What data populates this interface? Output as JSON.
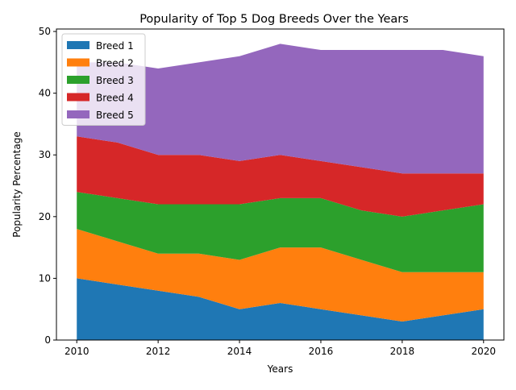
{
  "chart_data": {
    "type": "area",
    "stacked": true,
    "title": "Popularity of Top 5 Dog Breeds Over the Years",
    "xlabel": "Years",
    "ylabel": "Popularity Percentage",
    "xlim": [
      2009.5,
      2020.5
    ],
    "ylim": [
      0,
      50.4
    ],
    "xticks": [
      2010,
      2012,
      2014,
      2016,
      2018,
      2020
    ],
    "yticks": [
      0,
      10,
      20,
      30,
      40,
      50
    ],
    "grid": false,
    "legend_position": "top-left",
    "x": [
      2010,
      2011,
      2012,
      2013,
      2014,
      2015,
      2016,
      2017,
      2018,
      2019,
      2020
    ],
    "series": [
      {
        "name": "Breed 1",
        "color": "#1f77b4",
        "values": [
          10,
          9,
          8,
          7,
          5,
          6,
          5,
          4,
          3,
          4,
          5
        ]
      },
      {
        "name": "Breed 2",
        "color": "#ff7f0e",
        "values": [
          8,
          7,
          6,
          7,
          8,
          9,
          10,
          9,
          8,
          7,
          6
        ]
      },
      {
        "name": "Breed 3",
        "color": "#2ca02c",
        "values": [
          6,
          7,
          8,
          8,
          9,
          8,
          8,
          8,
          9,
          10,
          11
        ]
      },
      {
        "name": "Breed 4",
        "color": "#d62728",
        "values": [
          9,
          9,
          8,
          8,
          7,
          7,
          6,
          7,
          7,
          6,
          5
        ]
      },
      {
        "name": "Breed 5",
        "color": "#9467bd",
        "values": [
          12,
          13,
          14,
          15,
          17,
          18,
          18,
          19,
          20,
          20,
          19
        ]
      }
    ]
  }
}
